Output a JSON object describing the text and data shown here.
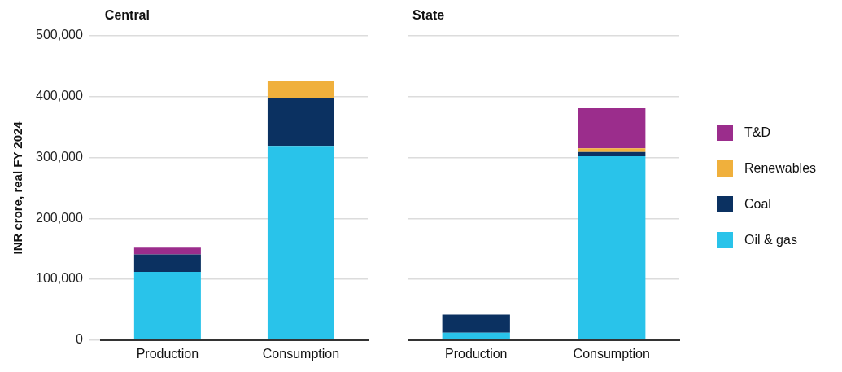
{
  "chart_data": [
    {
      "type": "bar",
      "title": "Central",
      "ylabel": "INR crore, real FY 2024",
      "stacked": true,
      "grid": "y",
      "legend": false,
      "categories": [
        "Production",
        "Consumption"
      ],
      "ylim": [
        0,
        500000
      ],
      "yticks": [
        0,
        {
          "value": 100000,
          "label": "100,000"
        },
        {
          "value": 200000,
          "label": "200,000"
        },
        {
          "value": 300000,
          "label": "300,000"
        },
        {
          "value": 400000,
          "label": "400,000"
        },
        {
          "value": 500000,
          "label": "500,000"
        }
      ],
      "series": [
        {
          "color": "#29c3ea",
          "values": [
            112000,
            319000
          ]
        },
        {
          "color": "#0b3161",
          "values": [
            29000,
            79000
          ]
        },
        {
          "color": "#f0b03c",
          "values": [
            null,
            27000
          ]
        },
        {
          "color": "#9b2d8c",
          "values": [
            11000,
            null
          ]
        }
      ]
    },
    {
      "type": "bar",
      "title": "State",
      "stacked": true,
      "grid": "y",
      "legend": "right",
      "tick_labels": "x",
      "categories": [
        "Production",
        "Consumption"
      ],
      "ylim": [
        0,
        500000
      ],
      "yticks": [
        0,
        100000,
        200000,
        300000,
        400000,
        500000
      ],
      "series": [
        {
          "name": "Oil & gas",
          "color": "#29c3ea",
          "values": [
            12000,
            302000
          ]
        },
        {
          "name": "Coal",
          "color": "#0b3161",
          "values": [
            30000,
            7000
          ]
        },
        {
          "name": "Renewables",
          "color": "#f0b03c",
          "values": [
            null,
            6000
          ]
        },
        {
          "name": "T&D",
          "color": "#9b2d8c",
          "values": [
            null,
            66000
          ]
        }
      ]
    }
  ]
}
